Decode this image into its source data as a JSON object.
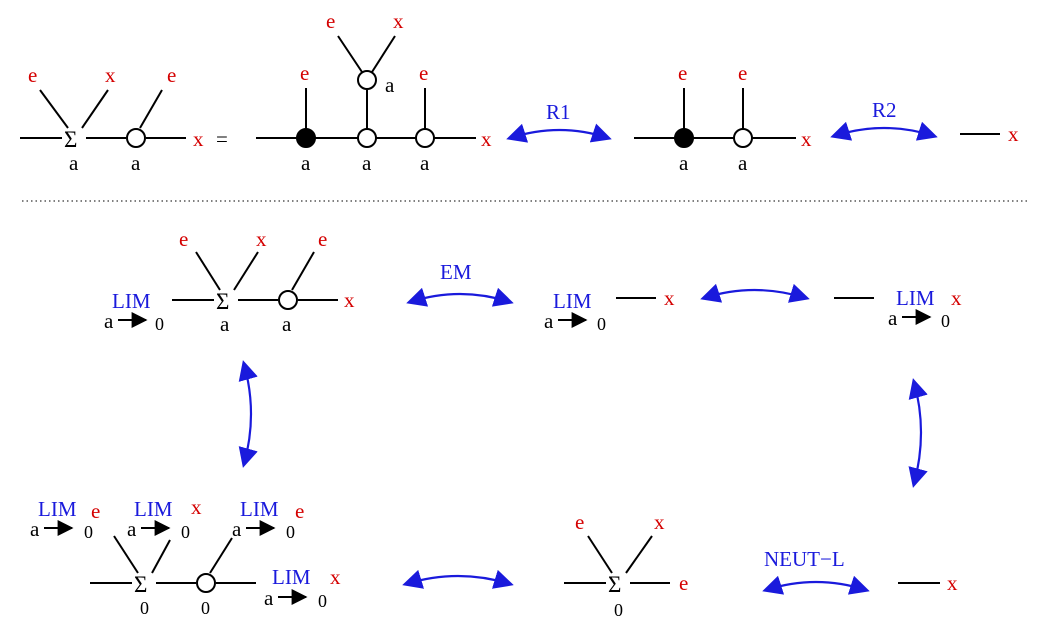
{
  "labels": {
    "e": "e",
    "x": "x",
    "a": "a",
    "zero": "0",
    "sigma": "Σ",
    "equals": "=",
    "lim": "LIM"
  },
  "arrows": {
    "r1": "R1",
    "r2": "R2",
    "em": "EM",
    "neut_l": "NEUT−L"
  },
  "colors": {
    "external_label": "#d40000",
    "arrow": "#1a1adc",
    "lines": "#000000"
  }
}
